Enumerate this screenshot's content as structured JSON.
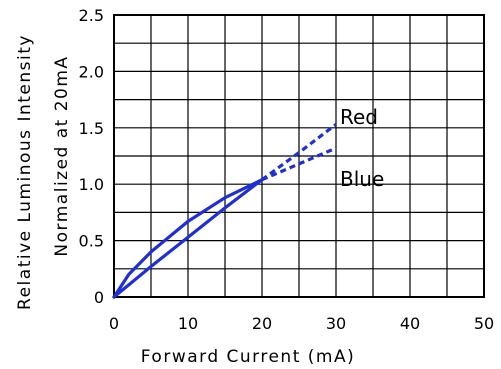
{
  "chart_data": {
    "type": "line",
    "xlabel": "Forward Current (mA)",
    "ylabel": [
      "Relative Luminous Intensity",
      "Normalized at 20mA"
    ],
    "xlim": [
      0,
      50
    ],
    "ylim": [
      0,
      2.5
    ],
    "xticks": [
      0,
      10,
      20,
      30,
      40,
      50
    ],
    "yticks": [
      0,
      0.5,
      1.0,
      1.5,
      2.0,
      2.5
    ],
    "xtick_labels": [
      "0",
      "10",
      "20",
      "30",
      "40",
      "50"
    ],
    "ytick_labels": [
      "0",
      "0.5",
      "1.0",
      "1.5",
      "2.0",
      "2.5"
    ],
    "grid": true,
    "grid_minor_x_step": 5,
    "grid_minor_y_step": 0.25,
    "line_color": "#1f2fd6",
    "series": [
      {
        "name": "Red",
        "solid": [
          [
            0,
            0
          ],
          [
            5,
            0.27
          ],
          [
            10,
            0.53
          ],
          [
            15,
            0.79
          ],
          [
            20,
            1.04
          ]
        ],
        "dashed": [
          [
            20,
            1.04
          ],
          [
            25,
            1.28
          ],
          [
            30,
            1.53
          ]
        ]
      },
      {
        "name": "Blue",
        "solid": [
          [
            0,
            0
          ],
          [
            2,
            0.2
          ],
          [
            5,
            0.4
          ],
          [
            10,
            0.67
          ],
          [
            15,
            0.88
          ],
          [
            20,
            1.04
          ]
        ],
        "dashed": [
          [
            20,
            1.04
          ],
          [
            25,
            1.18
          ],
          [
            30,
            1.32
          ]
        ]
      }
    ]
  }
}
